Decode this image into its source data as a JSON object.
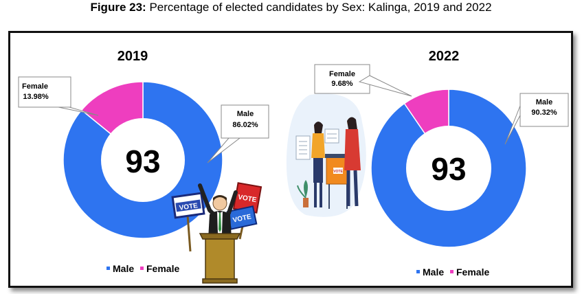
{
  "figure": {
    "label": "Figure 23:",
    "caption": "Percentage of elected candidates by Sex: Kalinga, 2019 and 2022"
  },
  "colors": {
    "male": "#2e74f0",
    "female": "#ee3ebf"
  },
  "icons": [
    "ballot-box-illustration",
    "candidate-podium-illustration",
    "vote-sign-icon"
  ],
  "illustration_text": {
    "vote": "VOTE"
  },
  "chart_data": [
    {
      "type": "pie",
      "title": "2019",
      "center_label": "93",
      "categories": [
        "Male",
        "Female"
      ],
      "values": [
        86.02,
        13.98
      ],
      "data_labels": [
        {
          "name": "Male",
          "value": "86.02%"
        },
        {
          "name": "Female",
          "value": "13.98%"
        }
      ],
      "legend": [
        "Male",
        "Female"
      ],
      "legend_position": "bottom"
    },
    {
      "type": "pie",
      "title": "2022",
      "center_label": "93",
      "categories": [
        "Male",
        "Female"
      ],
      "values": [
        90.32,
        9.68
      ],
      "data_labels": [
        {
          "name": "Male",
          "value": "90.32%"
        },
        {
          "name": "Female",
          "value": "9.68%"
        }
      ],
      "legend": [
        "Male",
        "Female"
      ],
      "legend_position": "bottom"
    }
  ]
}
